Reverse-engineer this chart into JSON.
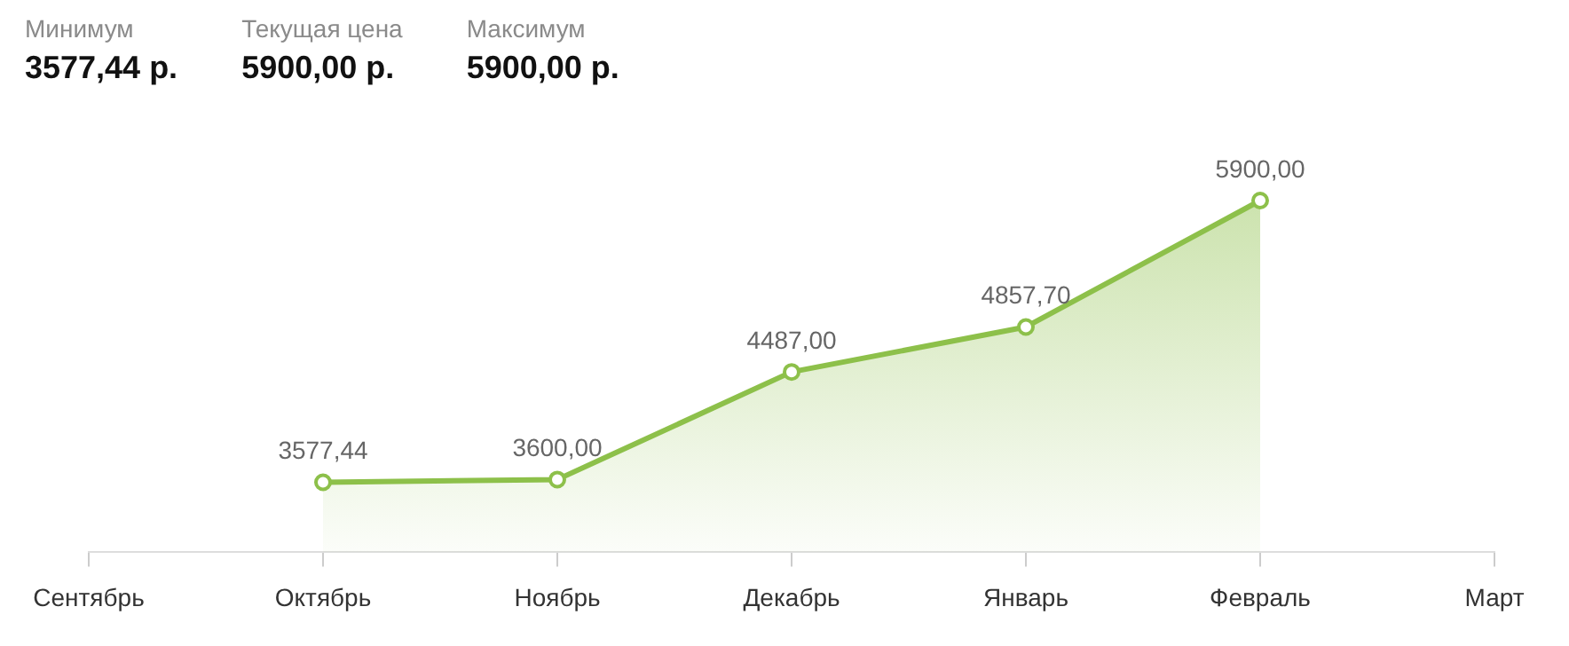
{
  "chart_data": {
    "type": "area",
    "annotations": [
      "Минимум",
      "3577,44 р.",
      "Текущая цена",
      "5900,00 р.",
      "Максимум",
      "5900,00 р."
    ],
    "categories": [
      "Сентябрь",
      "Октябрь",
      "Ноябрь",
      "Декабрь",
      "Январь",
      "Февраль",
      "Март"
    ],
    "series": [
      {
        "color": "#8dc04a",
        "values": [
          null,
          3577.44,
          3600,
          4487,
          4857.7,
          5900,
          null
        ],
        "value_labels": [
          null,
          "3577,44",
          "3600,00",
          "4487,00",
          "4857,70",
          "5900,00",
          null
        ]
      }
    ],
    "marker": "circle",
    "line_style": "solid",
    "grid": false,
    "legend": false
  }
}
